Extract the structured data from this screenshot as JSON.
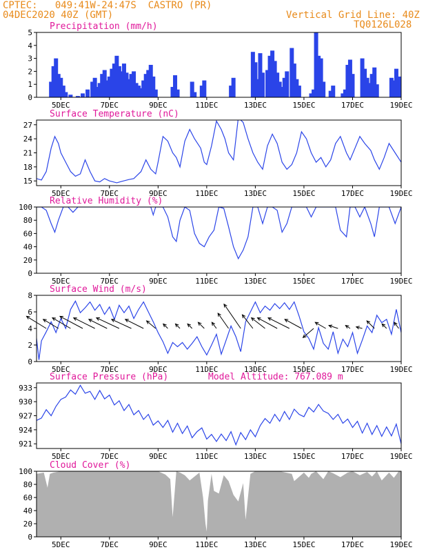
{
  "header": {
    "line1": "CPTEC:   049:41W-24:47S  CASTRO (PR)",
    "line2": "04DEC2020 40Z (GMT)",
    "right1": "Vertical Grid Line: 40Z",
    "right2": "TQ0126L028"
  },
  "colors": {
    "header": "#e88a1a",
    "title": "#e0189a",
    "series": "#2a44e8",
    "cloud": "#b0b0b0",
    "wind_arrow": "#000000"
  },
  "xaxis": {
    "ticks": [
      5,
      7,
      9,
      11,
      13,
      15,
      17,
      19
    ],
    "tick_labels": [
      "5DEC",
      "7DEC",
      "9DEC",
      "11DEC",
      "13DEC",
      "15DEC",
      "17DEC",
      "19DEC"
    ],
    "range": [
      4.0,
      19.0
    ]
  },
  "chart_data": [
    {
      "id": "precip",
      "type": "bar",
      "title": "Precipitation (mm/h)",
      "ylim": [
        0,
        5
      ],
      "yticks": [
        0,
        1,
        2,
        3,
        4,
        5
      ],
      "x": [
        4.6,
        4.7,
        4.8,
        4.9,
        5.0,
        5.1,
        5.2,
        5.4,
        5.7,
        5.9,
        6.1,
        6.3,
        6.4,
        6.5,
        6.6,
        6.7,
        6.8,
        6.9,
        7.0,
        7.1,
        7.2,
        7.3,
        7.4,
        7.5,
        7.6,
        7.7,
        7.8,
        7.9,
        8.0,
        8.1,
        8.2,
        8.3,
        8.4,
        8.5,
        8.6,
        8.7,
        8.8,
        8.9,
        9.6,
        9.7,
        9.8,
        10.4,
        10.5,
        10.8,
        10.9,
        12.0,
        12.1,
        12.9,
        13.0,
        13.1,
        13.2,
        13.3,
        13.5,
        13.6,
        13.7,
        13.8,
        13.9,
        14.0,
        14.1,
        14.2,
        14.3,
        14.5,
        14.6,
        14.7,
        14.8,
        15.3,
        15.4,
        15.5,
        15.6,
        15.7,
        15.8,
        16.1,
        16.2,
        16.6,
        16.7,
        16.8,
        16.9,
        17.0,
        17.4,
        17.5,
        17.6,
        17.7,
        17.8,
        17.9,
        18.0,
        18.6,
        18.7,
        18.8,
        18.9
      ],
      "values": [
        1.2,
        2.4,
        3.0,
        1.8,
        1.5,
        0.9,
        0.4,
        0.2,
        0.1,
        0.3,
        0.6,
        1.2,
        1.5,
        0.8,
        1.1,
        1.8,
        2.1,
        1.3,
        1.6,
        2.2,
        2.6,
        3.2,
        2.4,
        2.0,
        2.6,
        1.9,
        1.4,
        1.8,
        2.0,
        1.1,
        0.9,
        0.7,
        1.3,
        1.8,
        2.1,
        2.5,
        1.6,
        0.6,
        0.8,
        1.7,
        0.6,
        1.2,
        0.4,
        0.9,
        1.3,
        0.9,
        1.5,
        3.5,
        2.7,
        1.4,
        3.4,
        1.9,
        2.1,
        3.2,
        3.6,
        2.8,
        1.9,
        1.2,
        0.8,
        1.5,
        2.0,
        3.8,
        2.6,
        1.4,
        0.9,
        0.3,
        0.6,
        5.0,
        3.2,
        3.0,
        1.2,
        0.5,
        0.9,
        0.3,
        0.6,
        2.5,
        2.9,
        1.8,
        3.0,
        2.2,
        1.5,
        1.1,
        1.8,
        2.3,
        1.0,
        1.5,
        1.3,
        2.2,
        1.6
      ]
    },
    {
      "id": "temp",
      "type": "line",
      "title": "Surface Temperature (nC)",
      "ylim": [
        14,
        28
      ],
      "yticks": [
        15,
        18,
        21,
        24,
        27
      ],
      "x": [
        4.0,
        4.2,
        4.4,
        4.6,
        4.75,
        4.9,
        5.0,
        5.2,
        5.4,
        5.6,
        5.8,
        6.0,
        6.2,
        6.4,
        6.6,
        6.8,
        7.0,
        7.3,
        7.5,
        7.8,
        8.0,
        8.3,
        8.5,
        8.7,
        8.9,
        9.0,
        9.2,
        9.4,
        9.6,
        9.75,
        9.9,
        10.1,
        10.3,
        10.5,
        10.75,
        10.9,
        11.0,
        11.2,
        11.4,
        11.6,
        11.75,
        11.9,
        12.1,
        12.3,
        12.5,
        12.7,
        12.9,
        13.1,
        13.3,
        13.5,
        13.7,
        13.9,
        14.1,
        14.3,
        14.5,
        14.7,
        14.9,
        15.1,
        15.3,
        15.5,
        15.7,
        15.9,
        16.1,
        16.3,
        16.5,
        16.75,
        16.9,
        17.1,
        17.3,
        17.5,
        17.75,
        17.9,
        18.1,
        18.3,
        18.5,
        18.75,
        19.0
      ],
      "values": [
        15.5,
        15.2,
        17.0,
        22.0,
        24.5,
        23.0,
        21.0,
        19.0,
        17.0,
        16.0,
        16.5,
        19.5,
        17.0,
        15.0,
        14.8,
        15.5,
        15.0,
        14.6,
        14.9,
        15.3,
        15.5,
        17.0,
        19.5,
        17.5,
        16.5,
        19.0,
        24.5,
        23.5,
        21.0,
        20.0,
        18.0,
        23.5,
        26.0,
        24.0,
        22.0,
        19.0,
        18.5,
        22.5,
        27.8,
        26.0,
        24.0,
        21.0,
        19.5,
        28.5,
        27.5,
        24.0,
        21.0,
        19.0,
        17.5,
        22.5,
        25.0,
        23.0,
        19.0,
        17.5,
        18.5,
        21.0,
        25.5,
        24.0,
        21.0,
        19.0,
        20.0,
        18.0,
        19.5,
        23.0,
        24.5,
        21.0,
        19.5,
        22.0,
        24.5,
        23.0,
        21.5,
        19.5,
        17.5,
        20.0,
        23.0,
        21.0,
        19.0
      ]
    },
    {
      "id": "rh",
      "type": "line",
      "title": "Relative Humidity (%)",
      "ylim": [
        0,
        100
      ],
      "yticks": [
        0,
        20,
        40,
        60,
        80,
        100
      ],
      "x": [
        4.0,
        4.2,
        4.4,
        4.6,
        4.75,
        4.9,
        5.1,
        5.3,
        5.5,
        5.7,
        5.9,
        6.1,
        6.3,
        6.5,
        6.7,
        6.9,
        7.1,
        7.3,
        7.5,
        7.7,
        7.9,
        8.1,
        8.3,
        8.5,
        8.7,
        8.8,
        8.9,
        9.0,
        9.2,
        9.4,
        9.6,
        9.75,
        9.9,
        10.1,
        10.3,
        10.5,
        10.7,
        10.9,
        11.1,
        11.3,
        11.5,
        11.7,
        11.9,
        12.1,
        12.3,
        12.5,
        12.7,
        12.9,
        13.1,
        13.3,
        13.5,
        13.7,
        13.9,
        14.1,
        14.3,
        14.5,
        14.7,
        14.9,
        15.1,
        15.3,
        15.5,
        15.7,
        15.9,
        16.1,
        16.3,
        16.5,
        16.75,
        16.9,
        17.1,
        17.3,
        17.5,
        17.75,
        17.9,
        18.1,
        18.3,
        18.5,
        18.75,
        19.0
      ],
      "values": [
        100,
        100,
        95,
        75,
        62,
        80,
        100,
        100,
        92,
        100,
        100,
        100,
        100,
        100,
        100,
        100,
        100,
        100,
        100,
        100,
        100,
        100,
        100,
        100,
        100,
        88,
        100,
        100,
        100,
        85,
        55,
        48,
        80,
        100,
        95,
        60,
        45,
        40,
        55,
        65,
        100,
        98,
        70,
        40,
        22,
        35,
        55,
        100,
        100,
        75,
        100,
        100,
        95,
        62,
        75,
        100,
        100,
        100,
        100,
        85,
        100,
        100,
        100,
        100,
        100,
        65,
        55,
        100,
        100,
        85,
        100,
        75,
        55,
        100,
        100,
        100,
        75,
        100
      ]
    },
    {
      "id": "wind",
      "type": "line",
      "title": "Surface Wind (m/s)",
      "ylim": [
        0,
        8
      ],
      "yticks": [
        0,
        2,
        4,
        6,
        8
      ],
      "x": [
        4.0,
        4.1,
        4.2,
        4.4,
        4.6,
        4.8,
        5.0,
        5.2,
        5.4,
        5.6,
        5.8,
        6.0,
        6.2,
        6.4,
        6.6,
        6.8,
        7.0,
        7.2,
        7.4,
        7.6,
        7.8,
        8.0,
        8.2,
        8.4,
        8.6,
        8.8,
        9.0,
        9.2,
        9.4,
        9.6,
        9.8,
        10.0,
        10.2,
        10.4,
        10.6,
        10.8,
        11.0,
        11.2,
        11.4,
        11.6,
        11.8,
        12.0,
        12.2,
        12.4,
        12.6,
        12.8,
        13.0,
        13.2,
        13.4,
        13.6,
        13.8,
        14.0,
        14.2,
        14.4,
        14.6,
        14.8,
        15.0,
        15.2,
        15.4,
        15.6,
        15.8,
        16.0,
        16.2,
        16.4,
        16.6,
        16.8,
        17.0,
        17.2,
        17.4,
        17.6,
        17.8,
        18.0,
        18.2,
        18.4,
        18.6,
        18.8,
        19.0
      ],
      "values": [
        2.8,
        0.2,
        2.5,
        3.6,
        4.8,
        3.5,
        5.2,
        4.0,
        6.3,
        7.3,
        5.9,
        6.5,
        7.2,
        6.2,
        6.9,
        5.7,
        6.6,
        5.1,
        6.8,
        5.9,
        6.7,
        5.2,
        6.3,
        7.2,
        6.0,
        4.8,
        3.5,
        2.4,
        1.0,
        2.3,
        1.8,
        2.3,
        1.5,
        2.2,
        3.0,
        1.8,
        0.8,
        2.0,
        3.3,
        0.9,
        2.6,
        4.3,
        3.0,
        1.2,
        4.8,
        6.0,
        7.2,
        5.9,
        6.7,
        6.2,
        7.0,
        6.4,
        7.1,
        6.3,
        7.2,
        5.5,
        3.6,
        2.8,
        1.5,
        4.1,
        2.2,
        1.5,
        3.6,
        1.0,
        2.7,
        1.8,
        3.5,
        1.0,
        2.6,
        4.3,
        3.5,
        5.6,
        4.7,
        5.1,
        3.3,
        6.3,
        3.5
      ],
      "barbs": [
        {
          "x": 4.4,
          "u": -1.3,
          "v": 0.8
        },
        {
          "x": 4.9,
          "u": -1.0,
          "v": 0.6
        },
        {
          "x": 5.4,
          "u": -1.2,
          "v": 0.7
        },
        {
          "x": 5.9,
          "u": -1.5,
          "v": 0.8
        },
        {
          "x": 6.4,
          "u": -1.4,
          "v": 0.7
        },
        {
          "x": 6.9,
          "u": -1.2,
          "v": 0.6
        },
        {
          "x": 7.4,
          "u": -1.5,
          "v": 0.7
        },
        {
          "x": 7.9,
          "u": -1.3,
          "v": 0.6
        },
        {
          "x": 8.4,
          "u": -1.2,
          "v": 0.6
        },
        {
          "x": 8.9,
          "u": -0.6,
          "v": 0.5
        },
        {
          "x": 9.4,
          "u": -0.3,
          "v": 0.3
        },
        {
          "x": 9.9,
          "u": -0.3,
          "v": 0.3
        },
        {
          "x": 10.4,
          "u": -0.3,
          "v": 0.3
        },
        {
          "x": 10.9,
          "u": -0.4,
          "v": 0.4
        },
        {
          "x": 11.4,
          "u": -0.3,
          "v": 0.4
        },
        {
          "x": 11.9,
          "u": -0.7,
          "v": 1.0
        },
        {
          "x": 12.4,
          "u": -1.1,
          "v": 1.6
        },
        {
          "x": 12.9,
          "u": -0.7,
          "v": 0.9
        },
        {
          "x": 13.4,
          "u": -0.9,
          "v": 0.7
        },
        {
          "x": 13.9,
          "u": -1.3,
          "v": 0.7
        },
        {
          "x": 14.4,
          "u": -1.4,
          "v": 0.7
        },
        {
          "x": 14.9,
          "u": -1.1,
          "v": 0.6
        },
        {
          "x": 15.4,
          "u": -0.7,
          "v": -0.6
        },
        {
          "x": 15.9,
          "u": -0.7,
          "v": 0.4
        },
        {
          "x": 16.4,
          "u": -0.6,
          "v": 0.2
        },
        {
          "x": 16.9,
          "u": -0.3,
          "v": 0.2
        },
        {
          "x": 17.4,
          "u": -0.4,
          "v": 0.1
        },
        {
          "x": 17.9,
          "u": -0.5,
          "v": 0.5
        },
        {
          "x": 18.4,
          "u": -0.3,
          "v": 0.3
        },
        {
          "x": 18.9,
          "u": -0.3,
          "v": 0.4
        }
      ]
    },
    {
      "id": "press",
      "type": "line",
      "title": "Surface Pressure (hPa)",
      "subtitle": "Model Altitude: 767.089 m",
      "ylim": [
        920,
        934
      ],
      "yticks": [
        921,
        924,
        927,
        930,
        933
      ],
      "x": [
        4.0,
        4.2,
        4.4,
        4.6,
        4.8,
        5.0,
        5.2,
        5.4,
        5.6,
        5.8,
        6.0,
        6.2,
        6.4,
        6.6,
        6.8,
        7.0,
        7.2,
        7.4,
        7.6,
        7.8,
        8.0,
        8.2,
        8.4,
        8.6,
        8.8,
        9.0,
        9.2,
        9.4,
        9.6,
        9.8,
        10.0,
        10.2,
        10.4,
        10.6,
        10.8,
        11.0,
        11.2,
        11.4,
        11.6,
        11.8,
        12.0,
        12.2,
        12.4,
        12.6,
        12.8,
        13.0,
        13.2,
        13.4,
        13.6,
        13.8,
        14.0,
        14.2,
        14.4,
        14.6,
        14.8,
        15.0,
        15.2,
        15.4,
        15.6,
        15.8,
        16.0,
        16.2,
        16.4,
        16.6,
        16.8,
        17.0,
        17.2,
        17.4,
        17.6,
        17.8,
        18.0,
        18.2,
        18.4,
        18.6,
        18.8,
        19.0
      ],
      "values": [
        926.0,
        926.5,
        928.3,
        927.0,
        929.0,
        930.5,
        931.0,
        932.5,
        931.6,
        933.5,
        931.8,
        932.2,
        930.5,
        932.4,
        930.6,
        931.4,
        929.3,
        930.2,
        928.1,
        929.4,
        927.2,
        928.1,
        926.2,
        927.3,
        925.0,
        925.9,
        924.5,
        926.0,
        923.5,
        925.4,
        923.2,
        924.8,
        922.3,
        923.6,
        924.4,
        922.0,
        923.0,
        921.5,
        923.1,
        921.7,
        923.6,
        920.8,
        923.4,
        921.9,
        924.0,
        922.5,
        924.9,
        926.4,
        925.4,
        927.3,
        925.8,
        927.9,
        926.2,
        928.4,
        927.3,
        926.8,
        928.8,
        927.8,
        929.4,
        928.0,
        927.5,
        926.2,
        927.3,
        925.4,
        926.3,
        924.5,
        925.8,
        923.3,
        925.4,
        923.0,
        924.9,
        922.6,
        924.6,
        922.7,
        925.2,
        921.0
      ]
    },
    {
      "id": "cloud",
      "type": "area",
      "title": "Cloud Cover (%)",
      "ylim": [
        0,
        100
      ],
      "yticks": [
        0,
        20,
        40,
        60,
        80,
        100
      ],
      "x": [
        4.0,
        4.3,
        4.45,
        4.55,
        4.7,
        5.0,
        6.0,
        7.0,
        8.0,
        9.0,
        9.3,
        9.5,
        9.6,
        9.75,
        9.9,
        10.1,
        10.3,
        10.5,
        10.7,
        10.85,
        10.95,
        11.0,
        11.05,
        11.2,
        11.3,
        11.5,
        11.7,
        11.9,
        12.1,
        12.3,
        12.5,
        12.6,
        12.8,
        13.0,
        14.0,
        14.5,
        14.6,
        15.0,
        15.2,
        15.3,
        15.5,
        15.8,
        16.0,
        16.2,
        16.5,
        16.8,
        17.0,
        17.3,
        17.6,
        17.8,
        18.0,
        18.2,
        18.5,
        18.7,
        18.9,
        19.0
      ],
      "values": [
        96,
        98,
        75,
        96,
        98,
        100,
        100,
        100,
        100,
        100,
        95,
        88,
        30,
        100,
        98,
        94,
        86,
        92,
        98,
        60,
        20,
        8,
        55,
        96,
        70,
        66,
        94,
        85,
        64,
        54,
        82,
        26,
        96,
        100,
        100,
        96,
        85,
        98,
        90,
        96,
        100,
        88,
        100,
        97,
        91,
        98,
        100,
        94,
        99,
        92,
        100,
        86,
        98,
        90,
        100,
        100
      ]
    }
  ]
}
